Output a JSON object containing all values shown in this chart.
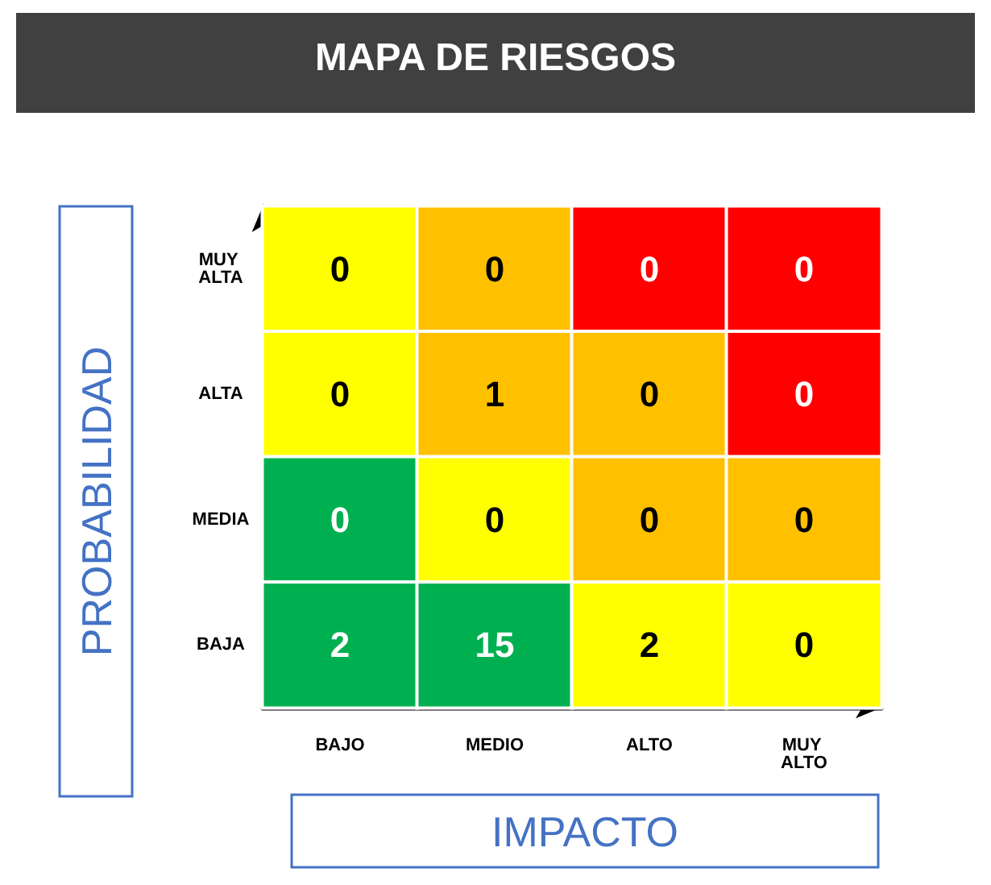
{
  "chart_data": {
    "type": "heatmap",
    "title": "MAPA DE RIESGOS",
    "xlabel": "IMPACTO",
    "ylabel": "PROBABILIDAD",
    "categories": [
      "BAJO",
      "MEDIO",
      "ALTO",
      "MUY ALTO"
    ],
    "y_categories": [
      "MUY ALTA",
      "ALTA",
      "MEDIA",
      "BAJA"
    ],
    "data_labels": true,
    "cells": [
      [
        0,
        0,
        0,
        0
      ],
      [
        0,
        1,
        0,
        0
      ],
      [
        0,
        0,
        0,
        0
      ],
      [
        2,
        15,
        2,
        0
      ]
    ],
    "colors": [
      [
        "#ffff00",
        "#ffc000",
        "#ff0000",
        "#ff0000"
      ],
      [
        "#ffff00",
        "#ffc000",
        "#ffc000",
        "#ff0000"
      ],
      [
        "#00b050",
        "#ffff00",
        "#ffc000",
        "#ffc000"
      ],
      [
        "#00b050",
        "#00b050",
        "#ffff00",
        "#ffff00"
      ]
    ]
  }
}
